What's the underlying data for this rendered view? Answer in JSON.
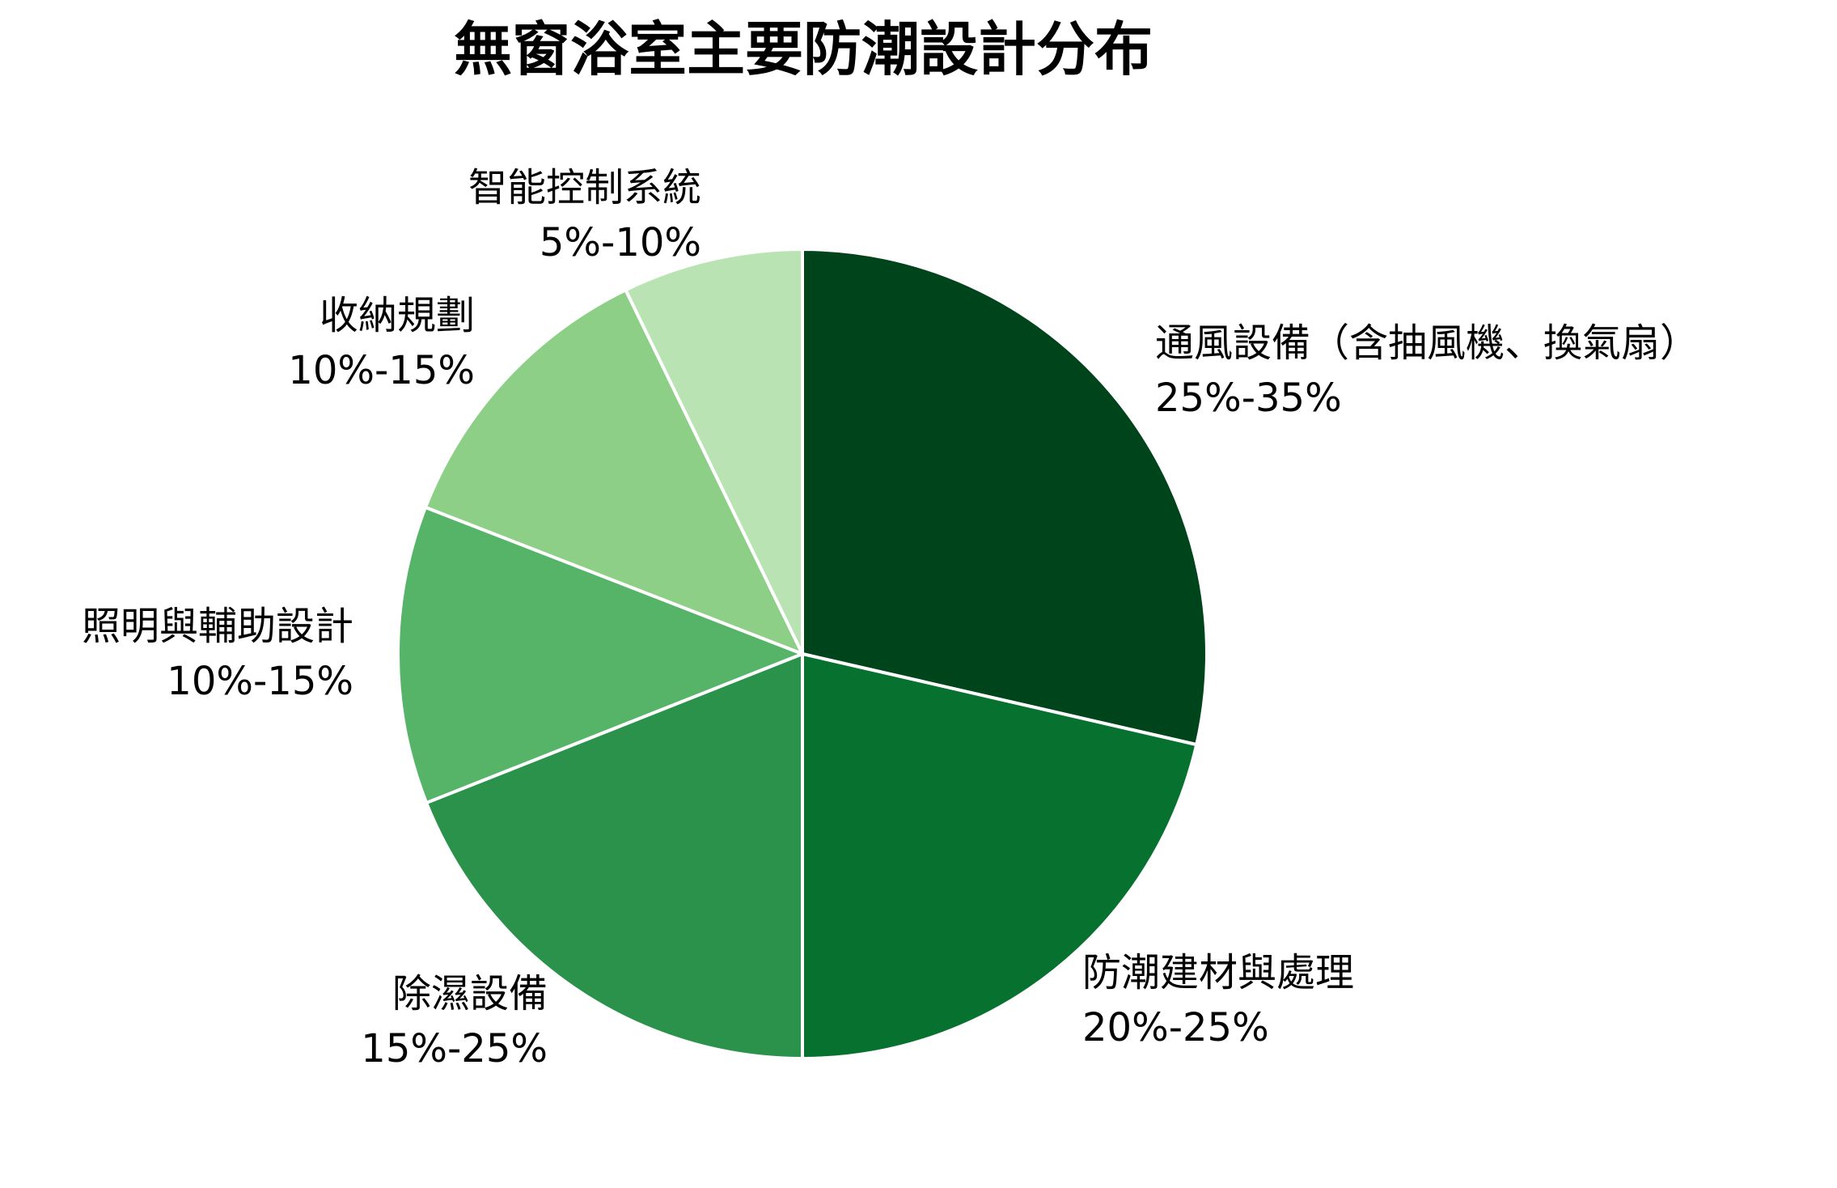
{
  "title": "無窗浴室主要防潮設計分布",
  "chart_data": {
    "type": "pie",
    "title": "無窗浴室主要防潮設計分布",
    "start_angle": "12 o'clock, clockwise",
    "categories": [
      "通風設備（含抽風機、換氣扇）",
      "防潮建材與處理",
      "除濕設備",
      "照明與輔助設計",
      "收納規劃",
      "智能控制系統"
    ],
    "range_labels": [
      "25%-35%",
      "20%-25%",
      "15%-25%",
      "10%-15%",
      "10%-15%",
      "5%-10%"
    ],
    "values": [
      28.6,
      21.4,
      19.0,
      11.9,
      11.9,
      7.2
    ],
    "colors": [
      "#00441b",
      "#07712f",
      "#2b924b",
      "#55b468",
      "#8ecf88",
      "#b9e3b2"
    ],
    "legend": "none (direct labels)"
  },
  "slices": [
    {
      "name": "通風設備（含抽風機、換氣扇）",
      "range": "25%-35%"
    },
    {
      "name": "防潮建材與處理",
      "range": "20%-25%"
    },
    {
      "name": "除濕設備",
      "range": "15%-25%"
    },
    {
      "name": "照明與輔助設計",
      "range": "10%-15%"
    },
    {
      "name": "收納規劃",
      "range": "10%-15%"
    },
    {
      "name": "智能控制系統",
      "range": "5%-10%"
    }
  ]
}
